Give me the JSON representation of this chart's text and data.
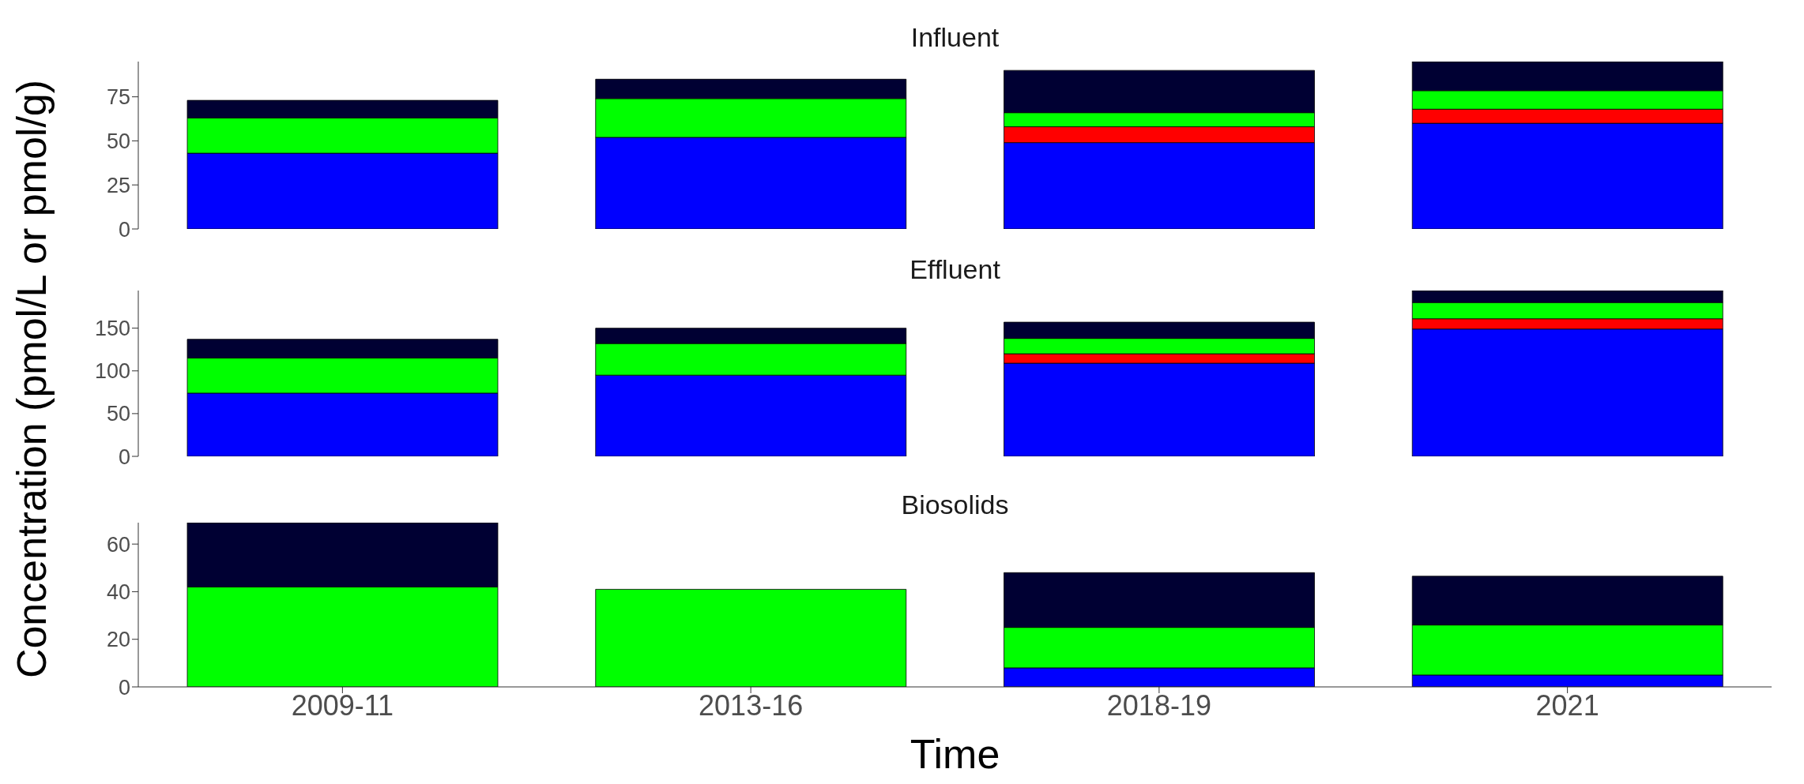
{
  "chart_data": [
    {
      "type": "bar",
      "title": "Influent",
      "stacked": true,
      "categories": [
        "2009-11",
        "2013-16",
        "2018-19",
        "2021"
      ],
      "ylim": [
        0,
        95
      ],
      "yticks": [
        0,
        25,
        50,
        75
      ],
      "tick_labels": "y",
      "grid": false,
      "legend": false,
      "series": [
        {
          "color": "#0000ff",
          "values": [
            43,
            52,
            49,
            60
          ]
        },
        {
          "color": "#ff0000",
          "values": [
            null,
            null,
            9,
            8
          ]
        },
        {
          "color": "#00ff00",
          "values": [
            20,
            22,
            8,
            10.5
          ]
        },
        {
          "color": "#000033",
          "values": [
            10,
            11,
            24,
            16.5
          ]
        }
      ]
    },
    {
      "type": "bar",
      "title": "Effluent",
      "ylabel": "Concentration (pmol/L or pmol/g)",
      "stacked": true,
      "categories": [
        "2009-11",
        "2013-16",
        "2018-19",
        "2021"
      ],
      "ylim": [
        0,
        194
      ],
      "yticks": [
        0,
        50,
        100,
        150
      ],
      "tick_labels": "y",
      "grid": false,
      "legend": false,
      "series": [
        {
          "color": "#0000ff",
          "values": [
            74,
            95,
            109,
            149
          ]
        },
        {
          "color": "#ff0000",
          "values": [
            null,
            null,
            11,
            12
          ]
        },
        {
          "color": "#00ff00",
          "values": [
            41,
            37,
            18,
            19
          ]
        },
        {
          "color": "#000033",
          "values": [
            22,
            18,
            19,
            14
          ]
        }
      ]
    },
    {
      "type": "bar",
      "title": "Biosolids",
      "xlabel": "Time",
      "stacked": true,
      "categories": [
        "2009-11",
        "2013-16",
        "2018-19",
        "2021"
      ],
      "ylim": [
        0,
        69
      ],
      "yticks": [
        0,
        20,
        40,
        60
      ],
      "grid": false,
      "legend": false,
      "series": [
        {
          "color": "#0000ff",
          "values": [
            null,
            null,
            8,
            5
          ]
        },
        {
          "color": "#00ff00",
          "values": [
            42,
            41,
            17,
            21
          ]
        },
        {
          "color": "#000033",
          "values": [
            27,
            null,
            23,
            20.5
          ]
        }
      ]
    }
  ]
}
